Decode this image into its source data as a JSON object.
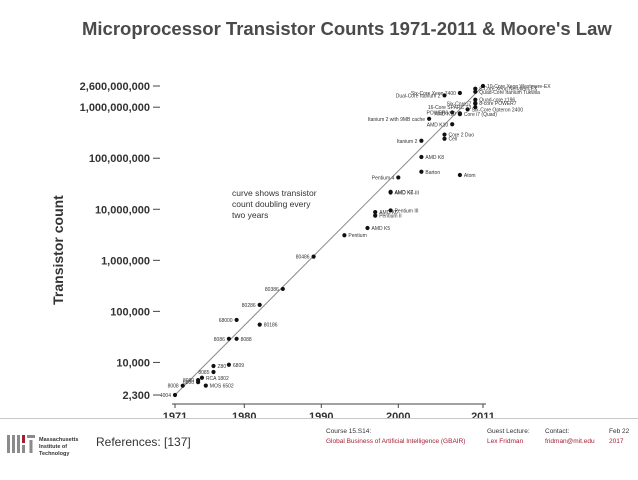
{
  "slide": {
    "title": "Microprocessor Transistor Counts 1971-2011 & Moore's Law"
  },
  "chart_data": {
    "type": "scatter",
    "title": "Microprocessor Transistor Counts 1971-2011 & Moore's Law",
    "xlabel": "",
    "ylabel": "Transistor count",
    "xlim": [
      1971,
      2011
    ],
    "ylim": [
      2300,
      2600000000
    ],
    "yscale": "log",
    "x_ticks": [
      1971,
      1980,
      1990,
      2000,
      2011
    ],
    "y_ticks": [
      {
        "value": 2300,
        "label": "2,300"
      },
      {
        "value": 10000,
        "label": "10,000"
      },
      {
        "value": 100000,
        "label": "100,000"
      },
      {
        "value": 1000000,
        "label": "1,000,000"
      },
      {
        "value": 10000000,
        "label": "10,000,000"
      },
      {
        "value": 100000000,
        "label": "100,000,000"
      },
      {
        "value": 1000000000,
        "label": "1,000,000,000"
      },
      {
        "value": 2600000000,
        "label": "2,600,000,000"
      }
    ],
    "trend_line": {
      "x": [
        1971,
        2011
      ],
      "y": [
        2300,
        2600000000
      ]
    },
    "annotation": "curve shows transistor count doubling every two years",
    "grid": false,
    "points": [
      {
        "label": "4004",
        "x": 1971,
        "y": 2300,
        "side": "left"
      },
      {
        "label": "8008",
        "x": 1972,
        "y": 3500,
        "side": "left"
      },
      {
        "label": "8080",
        "x": 1974,
        "y": 4500,
        "side": "left"
      },
      {
        "label": "RCA 1802",
        "x": 1974.5,
        "y": 5000,
        "side": "right"
      },
      {
        "label": "MOS 6502",
        "x": 1975,
        "y": 3510,
        "side": "right"
      },
      {
        "label": "6800",
        "x": 1974,
        "y": 4100,
        "side": "left"
      },
      {
        "label": "8085",
        "x": 1976,
        "y": 6500,
        "side": "left"
      },
      {
        "label": "Z80",
        "x": 1976,
        "y": 8500,
        "side": "right"
      },
      {
        "label": "6809",
        "x": 1978,
        "y": 9000,
        "side": "right"
      },
      {
        "label": "8086",
        "x": 1978,
        "y": 29000,
        "side": "left"
      },
      {
        "label": "8088",
        "x": 1979,
        "y": 29000,
        "side": "right"
      },
      {
        "label": "68000",
        "x": 1979,
        "y": 68000,
        "side": "left"
      },
      {
        "label": "80186",
        "x": 1982,
        "y": 55000,
        "side": "right"
      },
      {
        "label": "80286",
        "x": 1982,
        "y": 134000,
        "side": "left"
      },
      {
        "label": "80386",
        "x": 1985,
        "y": 275000,
        "side": "left"
      },
      {
        "label": "80486",
        "x": 1989,
        "y": 1180000,
        "side": "left"
      },
      {
        "label": "Pentium",
        "x": 1993,
        "y": 3100000,
        "side": "right"
      },
      {
        "label": "AMD K5",
        "x": 1996,
        "y": 4300000,
        "side": "right"
      },
      {
        "label": "Pentium II",
        "x": 1997,
        "y": 7500000,
        "side": "right"
      },
      {
        "label": "AMD K6",
        "x": 1997,
        "y": 8800000,
        "side": "right"
      },
      {
        "label": "Pentium III",
        "x": 1999,
        "y": 9500000,
        "side": "right"
      },
      {
        "label": "AMD K6-III",
        "x": 1999,
        "y": 21300000,
        "side": "right"
      },
      {
        "label": "AMD K7",
        "x": 1999,
        "y": 22000000,
        "side": "right"
      },
      {
        "label": "Pentium 4",
        "x": 2000,
        "y": 42000000,
        "side": "left"
      },
      {
        "label": "Barton",
        "x": 2003,
        "y": 54300000,
        "side": "right"
      },
      {
        "label": "AMD K8",
        "x": 2003,
        "y": 105900000,
        "side": "right"
      },
      {
        "label": "Atom",
        "x": 2008,
        "y": 47000000,
        "side": "right"
      },
      {
        "label": "Itanium 2",
        "x": 2003,
        "y": 220000000,
        "side": "left"
      },
      {
        "label": "Cell",
        "x": 2006,
        "y": 241000000,
        "side": "right"
      },
      {
        "label": "Core 2 Duo",
        "x": 2006,
        "y": 291000000,
        "side": "right"
      },
      {
        "label": "Core i7 (Quad)",
        "x": 2008,
        "y": 731000000,
        "side": "right"
      },
      {
        "label": "AMD K10",
        "x": 2007,
        "y": 463000000,
        "side": "left"
      },
      {
        "label": "Itanium 2 with 9MB cache",
        "x": 2004,
        "y": 592000000,
        "side": "left"
      },
      {
        "label": "POWER6",
        "x": 2007,
        "y": 789000000,
        "side": "left"
      },
      {
        "label": "AMD K10",
        "x": 2008,
        "y": 758000000,
        "side": "left"
      },
      {
        "label": "Six-Core Opteron 2400",
        "x": 2009,
        "y": 904000000,
        "side": "right"
      },
      {
        "label": "Dual-Core Itanium 2",
        "x": 2006,
        "y": 1700000000,
        "side": "left"
      },
      {
        "label": "Six-Core Xeon 7400",
        "x": 2008,
        "y": 1900000000,
        "side": "left"
      },
      {
        "label": "8-Core Xeon Nehalem-EX",
        "x": 2010,
        "y": 2300000000,
        "side": "right"
      },
      {
        "label": "Quad-Core Itanium Tukwila",
        "x": 2010,
        "y": 2000000000,
        "side": "right"
      },
      {
        "label": "Quad-core z196",
        "x": 2010,
        "y": 1400000000,
        "side": "right"
      },
      {
        "label": "8-core POWER7",
        "x": 2010,
        "y": 1200000000,
        "side": "right"
      },
      {
        "label": "10-Core Xeon Westmere-EX",
        "x": 2011,
        "y": 2600000000,
        "side": "right"
      },
      {
        "label": "Six-Core i7",
        "x": 2010,
        "y": 1170000000,
        "side": "left"
      },
      {
        "label": "16-Core SPARC T3",
        "x": 2010,
        "y": 1000000000,
        "side": "left"
      }
    ]
  },
  "footer": {
    "institution_line1": "Massachusetts",
    "institution_line2": "Institute of",
    "institution_line3": "Technology",
    "references": "References: [137]",
    "course_label": "Course 15.S14:",
    "course_value": "Global Business of Artificial Intelligence (GBAIR)",
    "guest_label": "Guest Lecture:",
    "guest_value": "Lex Fridman",
    "contact_label": "Contact:",
    "contact_value": "fridman@mit.edu",
    "date_line1": "Feb 22",
    "date_line2": "2017"
  }
}
